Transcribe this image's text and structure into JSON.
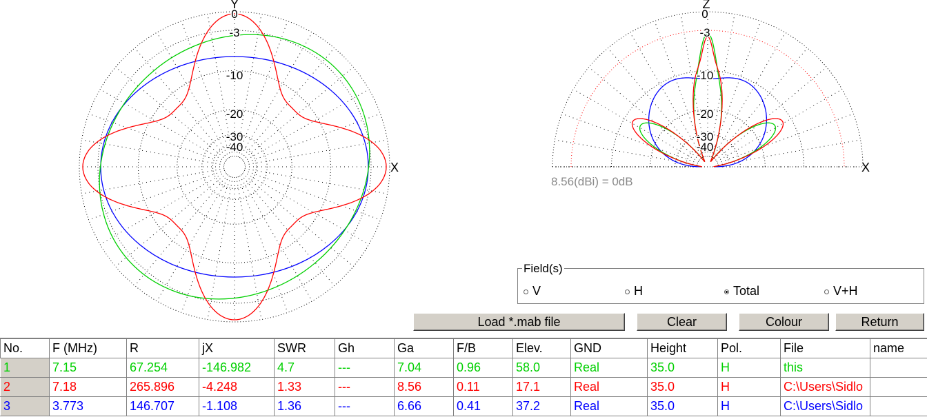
{
  "plots": {
    "azimuth": {
      "axis_y": "Y",
      "axis_x": "X",
      "db_labels": [
        "0",
        "-3",
        "-10",
        "-20",
        "-30",
        "-40"
      ]
    },
    "elevation": {
      "axis_z": "Z",
      "axis_x": "X",
      "db_labels": [
        "0",
        "-3",
        "-10",
        "-20",
        "-30",
        "-40"
      ]
    },
    "reference_label": "8.56(dBi) = 0dB"
  },
  "fields": {
    "legend": "Field(s)",
    "options": [
      {
        "label": "V",
        "selected": false
      },
      {
        "label": "H",
        "selected": false
      },
      {
        "label": "Total",
        "selected": true
      },
      {
        "label": "V+H",
        "selected": false
      }
    ]
  },
  "buttons": {
    "load": "Load *.mab file",
    "clear": "Clear",
    "colour": "Colour",
    "return": "Return"
  },
  "table": {
    "columns": [
      "No.",
      "F (MHz)",
      "R",
      "jX",
      "SWR",
      "Gh",
      "Ga",
      "F/B",
      "Elev.",
      "GND",
      "Height",
      "Pol.",
      "File",
      "name"
    ],
    "rows": [
      {
        "color": "#00d000",
        "cells": [
          "1",
          "7.15",
          "67.254",
          "-146.982",
          "4.7",
          "---",
          "7.04",
          "0.96",
          "58.0",
          "Real",
          "35.0",
          "H",
          "this",
          ""
        ]
      },
      {
        "color": "#ff0000",
        "cells": [
          "2",
          "7.18",
          "265.896",
          "-4.248",
          "1.33",
          "---",
          "8.56",
          "0.11",
          "17.1",
          "Real",
          "35.0",
          "H",
          "C:\\Users\\Sidlo",
          ""
        ]
      },
      {
        "color": "#0000ff",
        "cells": [
          "3",
          "3.773",
          "146.707",
          "-1.108",
          "1.36",
          "---",
          "6.66",
          "0.41",
          "37.2",
          "Real",
          "35.0",
          "H",
          "C:\\Users\\Sidlo",
          ""
        ]
      }
    ]
  },
  "colors": {
    "series1": "#00d000",
    "series2": "#ff0000",
    "series3": "#0000ff"
  }
}
